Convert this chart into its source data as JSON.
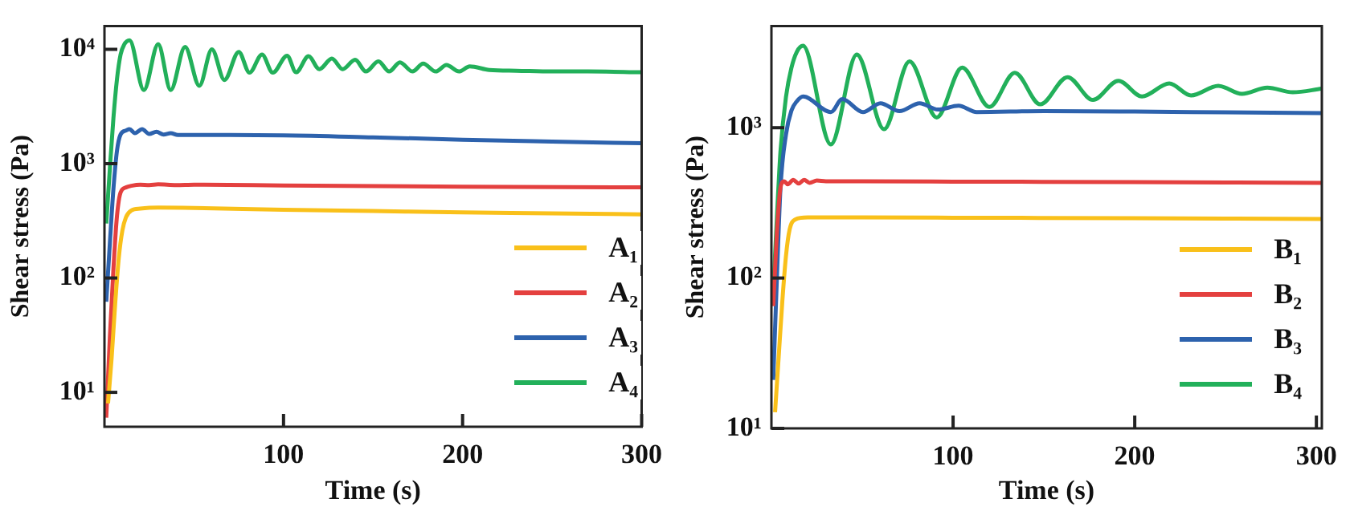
{
  "chart_data": [
    {
      "type": "line",
      "xlabel": "Time (s)",
      "ylabel": "Shear stress (Pa)",
      "log": "y",
      "grid": false,
      "legend": "bottom right",
      "line_style": "solid",
      "marker": "none",
      "xlim": [
        0,
        300
      ],
      "xticks": [
        100,
        200,
        300
      ],
      "ylim": [
        5,
        16000
      ],
      "yticks": [
        {
          "value": 10,
          "label": "10¹"
        },
        {
          "value": 100,
          "label": "10²"
        },
        {
          "value": 1000,
          "label": "10³"
        },
        {
          "value": 10000,
          "label": "10⁴"
        }
      ],
      "series": [
        {
          "name": "A₁",
          "color": "#f9c01a",
          "x": [
            2,
            4,
            6,
            8,
            10,
            12,
            15,
            20,
            30,
            50,
            100,
            150,
            200,
            250,
            300
          ],
          "values": [
            8,
            20,
            60,
            150,
            260,
            340,
            390,
            405,
            413,
            410,
            395,
            385,
            375,
            368,
            360
          ]
        },
        {
          "name": "A₂",
          "color": "#e4403f",
          "x": [
            1,
            3,
            5,
            7,
            9,
            12,
            15,
            20,
            25,
            30,
            40,
            50,
            100,
            200,
            300
          ],
          "values": [
            6,
            30,
            120,
            350,
            560,
            620,
            640,
            655,
            650,
            660,
            650,
            655,
            645,
            630,
            620
          ]
        },
        {
          "name": "A₃",
          "color": "#2d62ad",
          "x": [
            1,
            3,
            5,
            7,
            9,
            12,
            14,
            17,
            21,
            25,
            29,
            33,
            37,
            41,
            50,
            100,
            150,
            200,
            250,
            300
          ],
          "values": [
            62,
            200,
            600,
            1300,
            1800,
            1950,
            2000,
            1850,
            2000,
            1820,
            1900,
            1800,
            1850,
            1780,
            1780,
            1770,
            1700,
            1620,
            1560,
            1510
          ]
        },
        {
          "name": "A₄",
          "color": "#22b05a",
          "x": [
            1,
            3,
            5,
            7,
            9,
            11,
            14,
            22,
            30,
            37,
            45,
            53,
            60,
            67,
            75,
            81,
            88,
            94,
            102,
            107,
            114,
            120,
            127,
            133,
            140,
            146,
            153,
            159,
            165,
            172,
            178,
            185,
            191,
            198,
            204,
            215,
            230,
            250,
            270,
            300
          ],
          "values": [
            300,
            900,
            2500,
            5500,
            9000,
            11000,
            12000,
            4400,
            11100,
            4400,
            10500,
            4800,
            10000,
            5400,
            9500,
            6250,
            9000,
            6250,
            8800,
            6300,
            8700,
            6700,
            8300,
            6700,
            8100,
            6400,
            7850,
            6400,
            7700,
            6400,
            7500,
            6400,
            7300,
            6400,
            7100,
            6600,
            6500,
            6400,
            6400,
            6300
          ]
        }
      ]
    },
    {
      "type": "line",
      "xlabel": "Time (s)",
      "ylabel": "Shear stress (Pa)",
      "log": "y",
      "grid": false,
      "legend": "bottom right",
      "line_style": "solid",
      "marker": "none",
      "xlim": [
        0,
        303
      ],
      "xticks": [
        100,
        200,
        300
      ],
      "ylim": [
        10,
        4750
      ],
      "yticks": [
        {
          "value": 10,
          "label": "10¹"
        },
        {
          "value": 100,
          "label": "10²"
        },
        {
          "value": 1000,
          "label": "10³"
        }
      ],
      "series": [
        {
          "name": "B₁",
          "color": "#f9c01a",
          "x": [
            2,
            4,
            6,
            8,
            10,
            13,
            20,
            50,
            100,
            200,
            303
          ],
          "values": [
            12.8,
            30,
            70,
            140,
            210,
            245,
            253,
            253,
            252,
            250,
            247
          ]
        },
        {
          "name": "B₂",
          "color": "#e4403f",
          "x": [
            1,
            3,
            5,
            7,
            9,
            12,
            15,
            18,
            21,
            25,
            30,
            50,
            100,
            200,
            303
          ],
          "values": [
            65,
            200,
            400,
            440,
            420,
            450,
            425,
            450,
            430,
            445,
            440,
            440,
            438,
            435,
            430
          ]
        },
        {
          "name": "B₃",
          "color": "#2d62ad",
          "x": [
            1,
            3,
            5,
            8,
            11,
            14,
            17.4,
            32.7,
            39,
            50.4,
            60,
            70.5,
            81.6,
            91.7,
            103,
            113,
            150,
            200,
            250,
            303
          ],
          "values": [
            21,
            100,
            400,
            900,
            1300,
            1500,
            1615,
            1270,
            1550,
            1270,
            1456,
            1290,
            1456,
            1320,
            1400,
            1270,
            1290,
            1280,
            1265,
            1250
          ]
        },
        {
          "name": "B₄",
          "color": "#22b05a",
          "x": [
            1,
            3,
            5,
            8,
            11,
            14,
            17.4,
            32.7,
            47,
            62,
            76,
            91,
            105,
            120,
            134,
            148,
            163,
            177,
            191,
            204,
            219,
            231,
            246,
            259,
            273,
            287,
            303
          ],
          "values": [
            80,
            250,
            700,
            1600,
            2500,
            3200,
            3510,
            774,
            3070,
            977,
            2760,
            1170,
            2510,
            1375,
            2320,
            1430,
            2170,
            1530,
            2050,
            1615,
            1970,
            1640,
            1900,
            1680,
            1850,
            1720,
            1820
          ]
        }
      ]
    }
  ]
}
